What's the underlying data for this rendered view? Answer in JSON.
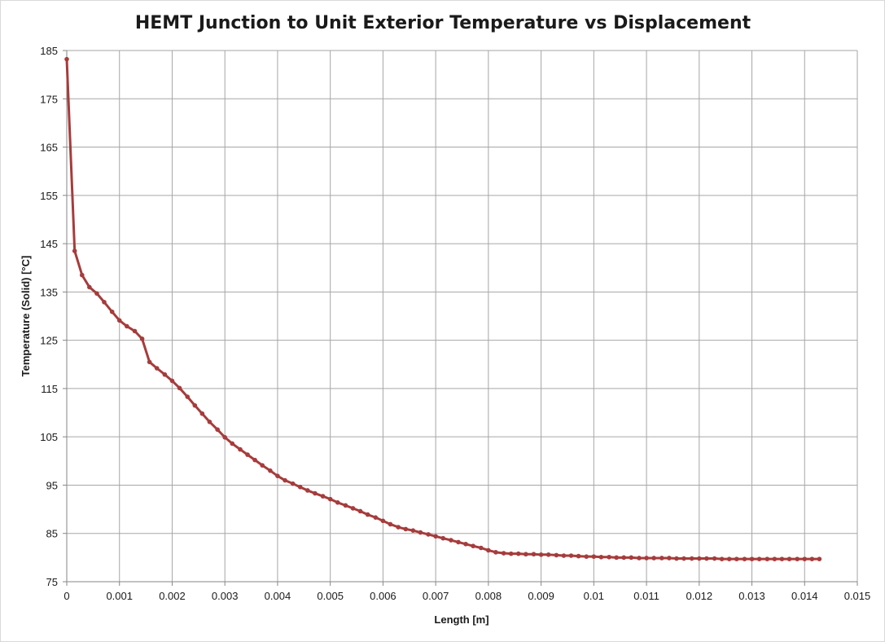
{
  "chart_data": {
    "type": "line",
    "title": "HEMT Junction to Unit Exterior Temperature vs Displacement",
    "xlabel": "Length [m]",
    "ylabel": "Temperature (Solid) [°C]",
    "xlim": [
      0,
      0.015
    ],
    "ylim": [
      75,
      185
    ],
    "x_ticks": [
      "0",
      "0.001",
      "0.002",
      "0.003",
      "0.004",
      "0.005",
      "0.006",
      "0.007",
      "0.008",
      "0.009",
      "0.01",
      "0.011",
      "0.012",
      "0.013",
      "0.014",
      "0.015"
    ],
    "y_ticks": [
      "75",
      "85",
      "95",
      "105",
      "115",
      "125",
      "135",
      "145",
      "155",
      "165",
      "175",
      "185"
    ],
    "grid": true,
    "legend": "none",
    "line_color": "#a63c3c",
    "series": [
      {
        "x": [
          0.0,
          0.00015,
          0.00029,
          0.00043,
          0.00057,
          0.00071,
          0.00086,
          0.001,
          0.00114,
          0.00129,
          0.00143,
          0.00157,
          0.00171,
          0.00186,
          0.002,
          0.00214,
          0.00229,
          0.00243,
          0.00257,
          0.00271,
          0.00286,
          0.003,
          0.00314,
          0.00329,
          0.00343,
          0.00357,
          0.00371,
          0.00386,
          0.004,
          0.00414,
          0.00429,
          0.00443,
          0.00457,
          0.00471,
          0.00486,
          0.005,
          0.00514,
          0.00529,
          0.00543,
          0.00557,
          0.00571,
          0.00586,
          0.006,
          0.00614,
          0.00629,
          0.00643,
          0.00657,
          0.00671,
          0.00686,
          0.007,
          0.00714,
          0.00729,
          0.00743,
          0.00757,
          0.00771,
          0.00786,
          0.008,
          0.00814,
          0.00829,
          0.00843,
          0.00857,
          0.00871,
          0.00886,
          0.009,
          0.00914,
          0.00929,
          0.00943,
          0.00957,
          0.00971,
          0.00986,
          0.01,
          0.01014,
          0.01029,
          0.01043,
          0.01057,
          0.01071,
          0.01086,
          0.011,
          0.01114,
          0.01129,
          0.01143,
          0.01157,
          0.01171,
          0.01186,
          0.012,
          0.01214,
          0.01229,
          0.01243,
          0.01257,
          0.01271,
          0.01286,
          0.013,
          0.01314,
          0.01329,
          0.01343,
          0.01357,
          0.01371,
          0.01386,
          0.014,
          0.01414,
          0.01428
        ],
        "y": [
          183.2,
          143.5,
          138.5,
          136.0,
          134.7,
          132.9,
          130.9,
          129.1,
          127.9,
          126.9,
          125.3,
          120.5,
          119.2,
          117.9,
          116.6,
          115.1,
          113.3,
          111.5,
          109.8,
          108.1,
          106.5,
          104.9,
          103.6,
          102.4,
          101.3,
          100.2,
          99.1,
          98.0,
          96.9,
          96.0,
          95.3,
          94.6,
          93.9,
          93.3,
          92.7,
          92.1,
          91.4,
          90.8,
          90.2,
          89.6,
          88.9,
          88.3,
          87.6,
          86.9,
          86.3,
          85.9,
          85.6,
          85.2,
          84.8,
          84.4,
          84.0,
          83.6,
          83.2,
          82.8,
          82.4,
          82.0,
          81.5,
          81.1,
          80.9,
          80.8,
          80.8,
          80.7,
          80.7,
          80.6,
          80.6,
          80.5,
          80.4,
          80.4,
          80.3,
          80.2,
          80.2,
          80.1,
          80.1,
          80.0,
          80.0,
          80.0,
          79.9,
          79.9,
          79.9,
          79.9,
          79.9,
          79.8,
          79.8,
          79.8,
          79.8,
          79.8,
          79.8,
          79.7,
          79.7,
          79.7,
          79.7,
          79.7,
          79.7,
          79.7,
          79.7,
          79.7,
          79.7,
          79.7,
          79.7,
          79.7,
          79.7
        ]
      }
    ]
  }
}
